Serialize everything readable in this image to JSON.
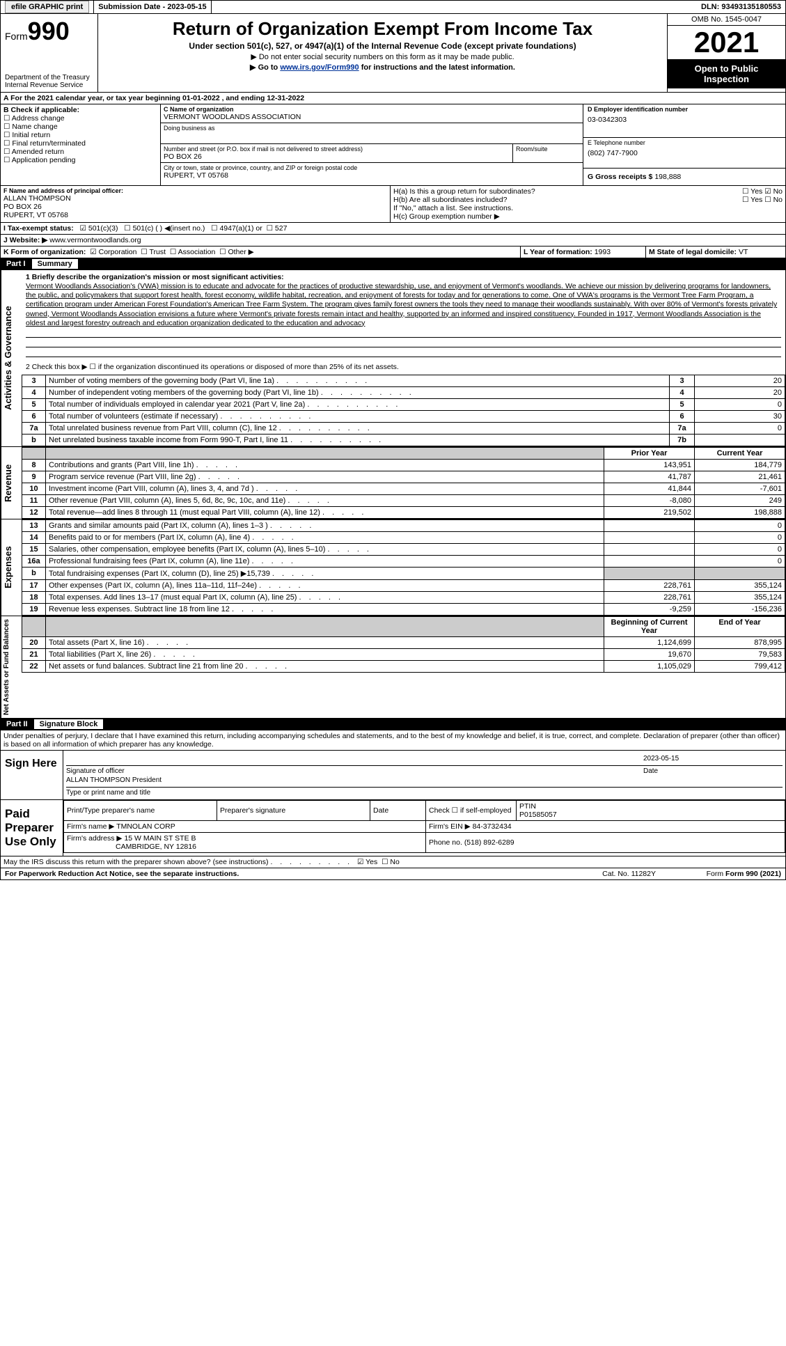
{
  "topbar": {
    "efile": "efile GRAPHIC print",
    "submission_label": "Submission Date - 2023-05-15",
    "dln": "DLN: 93493135180553"
  },
  "header": {
    "form_word": "Form",
    "form_number": "990",
    "dept": "Department of the Treasury",
    "irs": "Internal Revenue Service",
    "title": "Return of Organization Exempt From Income Tax",
    "subtitle": "Under section 501(c), 527, or 4947(a)(1) of the Internal Revenue Code (except private foundations)",
    "note1": "▶ Do not enter social security numbers on this form as it may be made public.",
    "note2_pre": "▶ Go to ",
    "note2_link": "www.irs.gov/Form990",
    "note2_post": " for instructions and the latest information.",
    "omb": "OMB No. 1545-0047",
    "year": "2021",
    "inspect1": "Open to Public",
    "inspect2": "Inspection"
  },
  "lineA": "A For the 2021 calendar year, or tax year beginning 01-01-2022    , and ending 12-31-2022",
  "boxB": {
    "label": "B Check if applicable:",
    "items": [
      "Address change",
      "Name change",
      "Initial return",
      "Final return/terminated",
      "Amended return",
      "Application pending"
    ]
  },
  "boxC": {
    "label": "C Name of organization",
    "name": "VERMONT WOODLANDS ASSOCIATION",
    "dba_label": "Doing business as",
    "addr_label": "Number and street (or P.O. box if mail is not delivered to street address)",
    "addr": "PO BOX 26",
    "room_label": "Room/suite",
    "city_label": "City or town, state or province, country, and ZIP or foreign postal code",
    "city": "RUPERT, VT  05768"
  },
  "boxD": {
    "label": "D Employer identification number",
    "ein": "03-0342303"
  },
  "boxE": {
    "label": "E Telephone number",
    "phone": "(802) 747-7900"
  },
  "boxG": {
    "label": "G Gross receipts $",
    "val": "198,888"
  },
  "boxF": {
    "label": "F  Name and address of principal officer:",
    "name": "ALLAN THOMPSON",
    "l2": "PO BOX 26",
    "l3": "RUPERT, VT  05768"
  },
  "boxH": {
    "a": "H(a)  Is this a group return for subordinates?",
    "b": "H(b)  Are all subordinates included?",
    "note": "If \"No,\" attach a list. See instructions.",
    "c": "H(c)  Group exemption number ▶",
    "yes": "Yes",
    "no": "No"
  },
  "boxI": {
    "label": "I   Tax-exempt status:",
    "o1": "501(c)(3)",
    "o2": "501(c) (   ) ◀(insert no.)",
    "o3": "4947(a)(1) or",
    "o4": "527"
  },
  "boxJ": {
    "label": "J   Website: ▶",
    "val": "www.vermontwoodlands.org"
  },
  "boxK": {
    "label": "K Form of organization:",
    "o1": "Corporation",
    "o2": "Trust",
    "o3": "Association",
    "o4": "Other ▶"
  },
  "boxL": {
    "label": "L Year of formation:",
    "val": "1993"
  },
  "boxM": {
    "label": "M State of legal domicile:",
    "val": "VT"
  },
  "part1": {
    "num": "Part I",
    "title": "Summary"
  },
  "summary": {
    "l1_label": "1   Briefly describe the organization's mission or most significant activities:",
    "mission": "Vermont Woodlands Association's (VWA) mission is to educate and advocate for the practices of productive stewardship, use, and enjoyment of Vermont's woodlands. We achieve our mission by delivering programs for landowners, the public, and policymakers that support forest health, forest economy, wildlife habitat, recreation, and enjoyment of forests for today and for generations to come. One of VWA's programs is the Vermont Tree Farm Program, a certification program under American Forest Foundation's American Tree Farm System. The program gives family forest owners the tools they need to manage their woodlands sustainably. With over 80% of Vermont's forests privately owned, Vermont Woodlands Association envisions a future where Vermont's private forests remain intact and healthy, supported by an informed and inspired constituency. Founded in 1917, Vermont Woodlands Association is the oldest and largest forestry outreach and education organization dedicated to the education and advocacy",
    "l2": "2   Check this box ▶ ☐  if the organization discontinued its operations or disposed of more than 25% of its net assets.",
    "rows_ag": [
      {
        "n": "3",
        "t": "Number of voting members of the governing body (Part VI, line 1a)",
        "box": "3",
        "v": "20"
      },
      {
        "n": "4",
        "t": "Number of independent voting members of the governing body (Part VI, line 1b)",
        "box": "4",
        "v": "20"
      },
      {
        "n": "5",
        "t": "Total number of individuals employed in calendar year 2021 (Part V, line 2a)",
        "box": "5",
        "v": "0"
      },
      {
        "n": "6",
        "t": "Total number of volunteers (estimate if necessary)",
        "box": "6",
        "v": "30"
      },
      {
        "n": "7a",
        "t": "Total unrelated business revenue from Part VIII, column (C), line 12",
        "box": "7a",
        "v": "0"
      },
      {
        "n": "b",
        "t": "Net unrelated business taxable income from Form 990-T, Part I, line 11",
        "box": "7b",
        "v": ""
      }
    ],
    "col_py": "Prior Year",
    "col_cy": "Current Year",
    "rows_rev": [
      {
        "n": "8",
        "t": "Contributions and grants (Part VIII, line 1h)",
        "py": "143,951",
        "cy": "184,779"
      },
      {
        "n": "9",
        "t": "Program service revenue (Part VIII, line 2g)",
        "py": "41,787",
        "cy": "21,461"
      },
      {
        "n": "10",
        "t": "Investment income (Part VIII, column (A), lines 3, 4, and 7d )",
        "py": "41,844",
        "cy": "-7,601"
      },
      {
        "n": "11",
        "t": "Other revenue (Part VIII, column (A), lines 5, 6d, 8c, 9c, 10c, and 11e)",
        "py": "-8,080",
        "cy": "249"
      },
      {
        "n": "12",
        "t": "Total revenue—add lines 8 through 11 (must equal Part VIII, column (A), line 12)",
        "py": "219,502",
        "cy": "198,888"
      }
    ],
    "rows_exp": [
      {
        "n": "13",
        "t": "Grants and similar amounts paid (Part IX, column (A), lines 1–3 )",
        "py": "",
        "cy": "0"
      },
      {
        "n": "14",
        "t": "Benefits paid to or for members (Part IX, column (A), line 4)",
        "py": "",
        "cy": "0"
      },
      {
        "n": "15",
        "t": "Salaries, other compensation, employee benefits (Part IX, column (A), lines 5–10)",
        "py": "",
        "cy": "0"
      },
      {
        "n": "16a",
        "t": "Professional fundraising fees (Part IX, column (A), line 11e)",
        "py": "",
        "cy": "0"
      },
      {
        "n": "b",
        "t": "Total fundraising expenses (Part IX, column (D), line 25) ▶15,739",
        "py": "shade",
        "cy": "shade"
      },
      {
        "n": "17",
        "t": "Other expenses (Part IX, column (A), lines 11a–11d, 11f–24e)",
        "py": "228,761",
        "cy": "355,124"
      },
      {
        "n": "18",
        "t": "Total expenses. Add lines 13–17 (must equal Part IX, column (A), line 25)",
        "py": "228,761",
        "cy": "355,124"
      },
      {
        "n": "19",
        "t": "Revenue less expenses. Subtract line 18 from line 12",
        "py": "-9,259",
        "cy": "-156,236"
      }
    ],
    "col_bcy": "Beginning of Current Year",
    "col_eoy": "End of Year",
    "rows_na": [
      {
        "n": "20",
        "t": "Total assets (Part X, line 16)",
        "py": "1,124,699",
        "cy": "878,995"
      },
      {
        "n": "21",
        "t": "Total liabilities (Part X, line 26)",
        "py": "19,670",
        "cy": "79,583"
      },
      {
        "n": "22",
        "t": "Net assets or fund balances. Subtract line 21 from line 20",
        "py": "1,105,029",
        "cy": "799,412"
      }
    ],
    "vlab_ag": "Activities & Governance",
    "vlab_rev": "Revenue",
    "vlab_exp": "Expenses",
    "vlab_na": "Net Assets or Fund Balances"
  },
  "part2": {
    "num": "Part II",
    "title": "Signature Block"
  },
  "perjury": "Under penalties of perjury, I declare that I have examined this return, including accompanying schedules and statements, and to the best of my knowledge and belief, it is true, correct, and complete. Declaration of preparer (other than officer) is based on all information of which preparer has any knowledge.",
  "sign": {
    "label": "Sign Here",
    "sig_of_officer": "Signature of officer",
    "date_label": "Date",
    "date": "2023-05-15",
    "name": "ALLAN THOMPSON  President",
    "type_label": "Type or print name and title"
  },
  "prep": {
    "label": "Paid Preparer Use Only",
    "h1": "Print/Type preparer's name",
    "h2": "Preparer's signature",
    "h3": "Date",
    "h4_a": "Check ☐ if self-employed",
    "h4_b": "PTIN",
    "ptin": "P01585057",
    "firm_label": "Firm's name    ▶",
    "firm": "TMNOLAN CORP",
    "ein_label": "Firm's EIN ▶",
    "ein": "84-3732434",
    "addr_label": "Firm's address ▶",
    "addr1": "15 W MAIN ST STE B",
    "addr2": "CAMBRIDGE, NY  12816",
    "phone_label": "Phone no.",
    "phone": "(518) 892-6289"
  },
  "discuss": {
    "q": "May the IRS discuss this return with the preparer shown above? (see instructions)",
    "yes": "Yes",
    "no": "No"
  },
  "footer": {
    "pra": "For Paperwork Reduction Act Notice, see the separate instructions.",
    "cat": "Cat. No. 11282Y",
    "form": "Form 990 (2021)"
  }
}
